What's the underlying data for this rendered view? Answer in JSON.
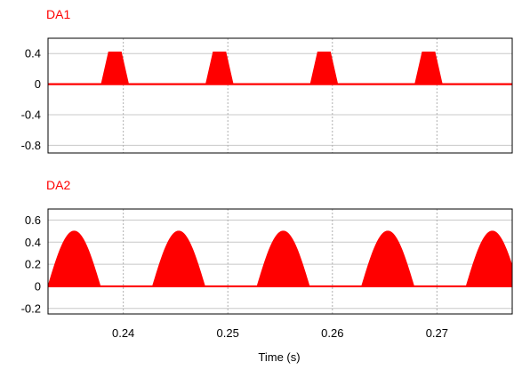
{
  "chart_data": [
    {
      "type": "line",
      "title": "DA1",
      "xlabel": "",
      "ylabel": "",
      "xlim": [
        0.2328,
        0.2772
      ],
      "ylim": [
        -0.9,
        0.6
      ],
      "yticks": [
        0.4,
        0,
        -0.4,
        -0.8
      ],
      "ytick_labels": [
        "0.4",
        "0",
        "-0.4",
        "-0.8"
      ],
      "xticks": [
        0.24,
        0.25,
        0.26,
        0.27
      ],
      "grid": true,
      "series": [
        {
          "color": "#ff0000",
          "shape": "trapezoid-pulses",
          "peak": 0.42,
          "pulses": [
            {
              "start": 0.2379,
              "top_start": 0.2386,
              "top_end": 0.2398,
              "end": 0.2405
            },
            {
              "start": 0.2479,
              "top_start": 0.2486,
              "top_end": 0.2498,
              "end": 0.2505
            },
            {
              "start": 0.2579,
              "top_start": 0.2586,
              "top_end": 0.2598,
              "end": 0.2605
            },
            {
              "start": 0.2679,
              "top_start": 0.2686,
              "top_end": 0.2698,
              "end": 0.2705
            }
          ]
        }
      ]
    },
    {
      "type": "line",
      "title": "DA2",
      "xlabel": "Time (s)",
      "ylabel": "",
      "xlim": [
        0.2328,
        0.2772
      ],
      "ylim": [
        -0.25,
        0.7
      ],
      "yticks": [
        0.6,
        0.4,
        0.2,
        0,
        -0.2
      ],
      "ytick_labels": [
        "0.6",
        "0.4",
        "0.2",
        "0",
        "-0.2"
      ],
      "xticks": [
        0.24,
        0.25,
        0.26,
        0.27
      ],
      "xtick_labels": [
        "0.24",
        "0.25",
        "0.26",
        "0.27"
      ],
      "grid": true,
      "series": [
        {
          "color": "#ff0000",
          "shape": "half-sine-pulses",
          "peak": 0.5,
          "pulses": [
            {
              "start": 0.2328,
              "end": 0.2378
            },
            {
              "start": 0.2428,
              "end": 0.2478
            },
            {
              "start": 0.2528,
              "end": 0.2578
            },
            {
              "start": 0.2628,
              "end": 0.2678
            },
            {
              "start": 0.2728,
              "end": 0.2778
            }
          ]
        }
      ]
    }
  ]
}
